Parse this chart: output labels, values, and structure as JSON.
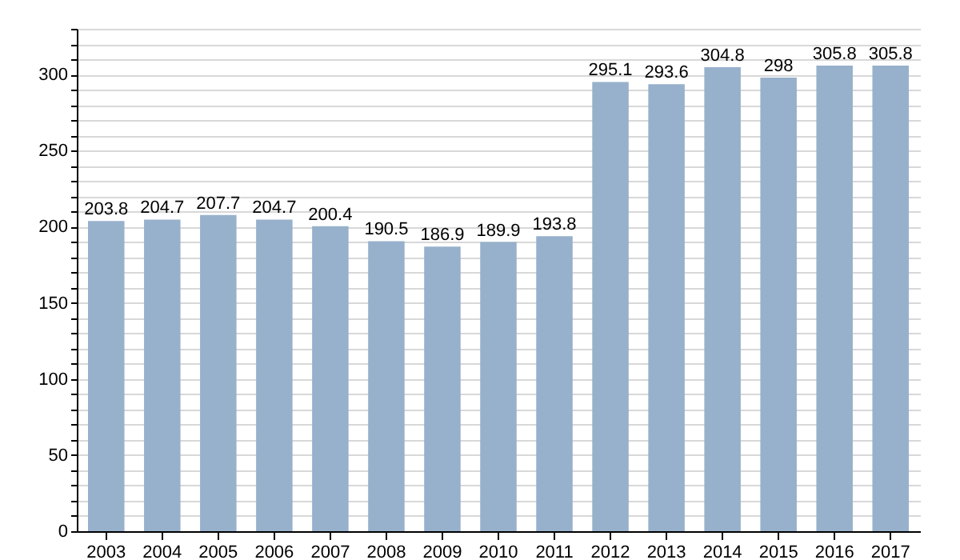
{
  "chart_data": {
    "type": "bar",
    "categories": [
      "2003",
      "2004",
      "2005",
      "2006",
      "2007",
      "2008",
      "2009",
      "2010",
      "2011",
      "2012",
      "2013",
      "2014",
      "2015",
      "2016",
      "2017"
    ],
    "values": [
      203.8,
      204.7,
      207.7,
      204.7,
      200.4,
      190.5,
      186.9,
      189.9,
      193.8,
      295.1,
      293.6,
      304.8,
      298,
      305.8,
      305.8
    ],
    "color": "#97b1cc",
    "data_labels": true,
    "grid": "y",
    "ylim": [
      0,
      330
    ],
    "yticks": [
      0,
      {
        "value": 10,
        "label": null
      },
      {
        "value": 20,
        "label": null
      },
      {
        "value": 30,
        "label": null
      },
      {
        "value": 40,
        "label": null
      },
      50,
      {
        "value": 60,
        "label": null
      },
      {
        "value": 70,
        "label": null
      },
      {
        "value": 80,
        "label": null
      },
      {
        "value": 90,
        "label": null
      },
      100,
      {
        "value": 110,
        "label": null
      },
      {
        "value": 120,
        "label": null
      },
      {
        "value": 130,
        "label": null
      },
      {
        "value": 140,
        "label": null
      },
      150,
      {
        "value": 160,
        "label": null
      },
      {
        "value": 170,
        "label": null
      },
      {
        "value": 180,
        "label": null
      },
      {
        "value": 190,
        "label": null
      },
      200,
      {
        "value": 210,
        "label": null
      },
      {
        "value": 220,
        "label": null
      },
      {
        "value": 230,
        "label": null
      },
      {
        "value": 240,
        "label": null
      },
      250,
      {
        "value": 260,
        "label": null
      },
      {
        "value": 270,
        "label": null
      },
      {
        "value": 280,
        "label": null
      },
      {
        "value": 290,
        "label": null
      },
      300,
      {
        "value": 310,
        "label": null
      },
      {
        "value": 320,
        "label": null
      },
      {
        "value": 330,
        "label": null
      }
    ]
  }
}
